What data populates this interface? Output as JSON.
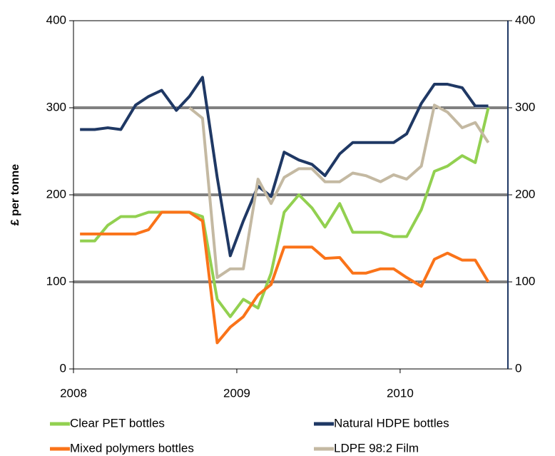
{
  "chart_data": {
    "type": "line",
    "y_label": "£ per tonne",
    "x": [
      2008.04,
      2008.13,
      2008.21,
      2008.29,
      2008.38,
      2008.46,
      2008.54,
      2008.63,
      2008.71,
      2008.79,
      2008.88,
      2008.96,
      2009.04,
      2009.13,
      2009.21,
      2009.29,
      2009.38,
      2009.46,
      2009.54,
      2009.63,
      2009.71,
      2009.79,
      2009.88,
      2009.96,
      2010.04,
      2010.13,
      2010.21,
      2010.29,
      2010.38,
      2010.46,
      2010.54
    ],
    "series": [
      {
        "name": "Clear PET bottles",
        "color": "#92d050",
        "values": [
          147,
          147,
          165,
          175,
          175,
          180,
          180,
          180,
          180,
          175,
          80,
          60,
          80,
          70,
          110,
          180,
          200,
          185,
          163,
          190,
          157,
          157,
          157,
          152,
          152,
          183,
          227,
          233,
          245,
          237,
          300
        ]
      },
      {
        "name": "Natural HDPE bottles",
        "color": "#1f3864",
        "values": [
          275,
          275,
          277,
          275,
          303,
          313,
          320,
          297,
          313,
          335,
          220,
          130,
          170,
          210,
          198,
          249,
          240,
          235,
          222,
          247,
          260,
          260,
          260,
          260,
          270,
          305,
          327,
          327,
          323,
          302,
          302
        ]
      },
      {
        "name": "Mixed polymers bottles",
        "color": "#fa7319",
        "values": [
          155,
          155,
          155,
          155,
          155,
          160,
          180,
          180,
          180,
          170,
          30,
          48,
          60,
          85,
          97,
          140,
          140,
          140,
          127,
          128,
          110,
          110,
          115,
          115,
          105,
          95,
          126,
          133,
          125,
          125,
          100
        ]
      },
      {
        "name": "LDPE 98:2 Film",
        "color": "#c4b9a2",
        "values": [
          null,
          null,
          null,
          null,
          null,
          null,
          null,
          null,
          300,
          288,
          105,
          115,
          115,
          218,
          190,
          220,
          230,
          230,
          215,
          215,
          225,
          222,
          215,
          223,
          218,
          233,
          303,
          295,
          277,
          283,
          260
        ]
      }
    ],
    "xlim": [
      2008,
      2010.66
    ],
    "xticks": [
      2008,
      2009,
      2010
    ],
    "ylim": [
      0,
      400
    ],
    "yticks": [
      0,
      100,
      200,
      300,
      400
    ],
    "y2lim": [
      0,
      400
    ],
    "y2ticks": [
      0,
      100,
      200,
      300,
      400
    ],
    "grid": true
  }
}
